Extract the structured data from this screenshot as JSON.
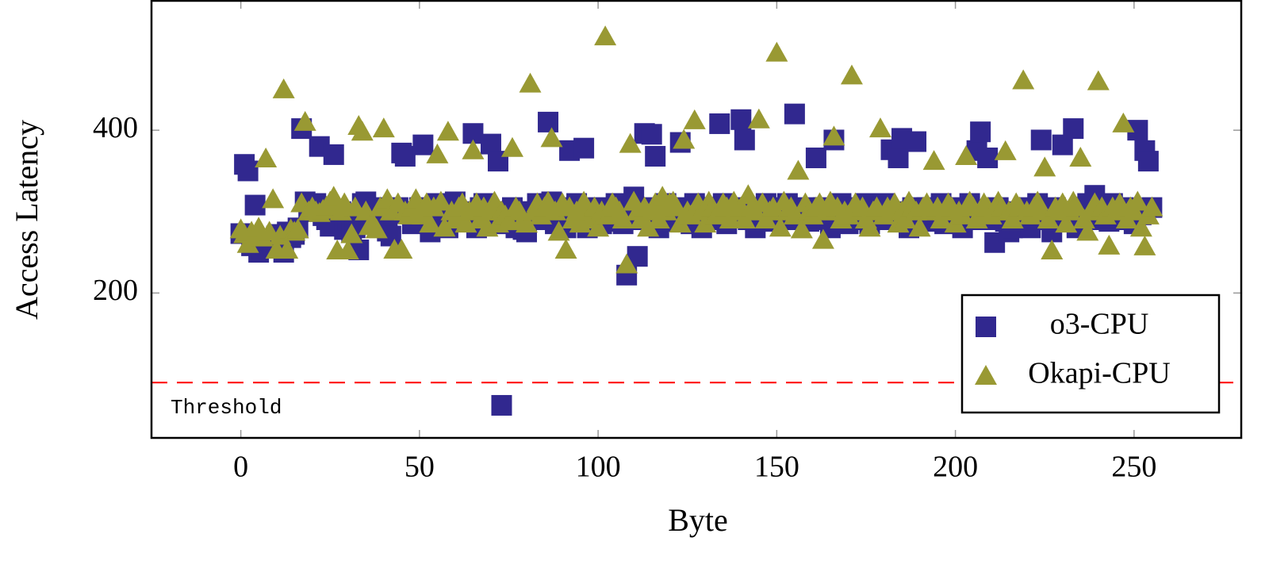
{
  "chart_data": {
    "type": "scatter",
    "x_label": "Byte",
    "y_label": "Access Latency",
    "x": [
      0,
      1,
      2,
      3,
      4,
      5,
      6,
      7,
      8,
      9,
      10,
      11,
      12,
      13,
      14,
      15,
      16,
      17,
      18,
      19,
      20,
      21,
      22,
      23,
      24,
      25,
      26,
      27,
      28,
      29,
      30,
      31,
      32,
      33,
      34,
      35,
      36,
      37,
      38,
      39,
      40,
      41,
      42,
      43,
      44,
      45,
      46,
      47,
      48,
      49,
      50,
      51,
      52,
      53,
      54,
      55,
      56,
      57,
      58,
      59,
      60,
      61,
      62,
      63,
      64,
      65,
      66,
      67,
      68,
      69,
      70,
      71,
      72,
      73,
      74,
      75,
      76,
      77,
      78,
      79,
      80,
      81,
      82,
      83,
      84,
      85,
      86,
      87,
      88,
      89,
      90,
      91,
      92,
      93,
      94,
      95,
      96,
      97,
      98,
      99,
      100,
      101,
      102,
      103,
      104,
      105,
      106,
      107,
      108,
      109,
      110,
      111,
      112,
      113,
      114,
      115,
      116,
      117,
      118,
      119,
      120,
      121,
      122,
      123,
      124,
      125,
      126,
      127,
      128,
      129,
      130,
      131,
      132,
      133,
      134,
      135,
      136,
      137,
      138,
      139,
      140,
      141,
      142,
      143,
      144,
      145,
      146,
      147,
      148,
      149,
      150,
      151,
      152,
      153,
      154,
      155,
      156,
      157,
      158,
      159,
      160,
      161,
      162,
      163,
      164,
      165,
      166,
      167,
      168,
      169,
      170,
      171,
      172,
      173,
      174,
      175,
      176,
      177,
      178,
      179,
      180,
      181,
      182,
      183,
      184,
      185,
      186,
      187,
      188,
      189,
      190,
      191,
      192,
      193,
      194,
      195,
      196,
      197,
      198,
      199,
      200,
      201,
      202,
      203,
      204,
      205,
      206,
      207,
      208,
      209,
      210,
      211,
      212,
      213,
      214,
      215,
      216,
      217,
      218,
      219,
      220,
      221,
      222,
      223,
      224,
      225,
      226,
      227,
      228,
      229,
      230,
      231,
      232,
      233,
      234,
      235,
      236,
      237,
      238,
      239,
      240,
      241,
      242,
      243,
      244,
      245,
      246,
      247,
      248,
      249,
      250,
      251,
      252,
      253,
      254,
      255
    ],
    "series": [
      {
        "name": "o3-CPU",
        "color": "#31288f",
        "marker": "square",
        "values": [
          273,
          358,
          350,
          258,
          308,
          250,
          255,
          260,
          265,
          258,
          270,
          272,
          250,
          275,
          268,
          272,
          280,
          402,
          312,
          305,
          300,
          310,
          380,
          295,
          290,
          282,
          370,
          285,
          300,
          278,
          290,
          275,
          280,
          253,
          310,
          312,
          300,
          292,
          305,
          288,
          285,
          276,
          270,
          298,
          305,
          372,
          368,
          300,
          285,
          290,
          305,
          382,
          295,
          275,
          300,
          310,
          296,
          288,
          280,
          305,
          312,
          300,
          290,
          296,
          298,
          396,
          280,
          305,
          310,
          290,
          383,
          300,
          362,
          62,
          285,
          290,
          305,
          280,
          300,
          278,
          275,
          300,
          295,
          310,
          290,
          305,
          410,
          312,
          285,
          300,
          298,
          280,
          375,
          305,
          310,
          290,
          378,
          280,
          300,
          292,
          305,
          285,
          300,
          296,
          288,
          310,
          300,
          285,
          222,
          300,
          318,
          245,
          290,
          396,
          305,
          395,
          368,
          280,
          300,
          310,
          292,
          288,
          305,
          385,
          290,
          300,
          285,
          310,
          296,
          280,
          305,
          298,
          300,
          290,
          408,
          310,
          285,
          300,
          296,
          305,
          413,
          388,
          290,
          300,
          280,
          305,
          295,
          310,
          288,
          300,
          296,
          290,
          305,
          310,
          298,
          420,
          290,
          300,
          305,
          288,
          300,
          366,
          295,
          305,
          290,
          280,
          388,
          300,
          310,
          296,
          285,
          305,
          300,
          290,
          298,
          310,
          285,
          300,
          295,
          305,
          310,
          290,
          376,
          300,
          366,
          390,
          296,
          280,
          305,
          386,
          300,
          290,
          305,
          288,
          300,
          296,
          310,
          285,
          300,
          290,
          305,
          296,
          280,
          300,
          310,
          290,
          375,
          398,
          300,
          366,
          290,
          262,
          305,
          296,
          288,
          275,
          280,
          300,
          285,
          290,
          305,
          280,
          296,
          310,
          388,
          300,
          290,
          275,
          305,
          296,
          382,
          300,
          288,
          402,
          280,
          305,
          296,
          310,
          290,
          320,
          300,
          296,
          305,
          288,
          310,
          300,
          295,
          305,
          290,
          300,
          285,
          400,
          296,
          375,
          362,
          305
        ]
      },
      {
        "name": "Okapi-CPU",
        "color": "#999933",
        "marker": "triangle",
        "values": [
          278,
          272,
          260,
          275,
          270,
          280,
          268,
          365,
          275,
          315,
          253,
          270,
          450,
          253,
          278,
          275,
          278,
          310,
          410,
          300,
          305,
          300,
          298,
          302,
          306,
          312,
          318,
          252,
          300,
          310,
          252,
          272,
          305,
          405,
          398,
          300,
          282,
          285,
          278,
          305,
          402,
          315,
          300,
          253,
          310,
          253,
          300,
          295,
          305,
          315,
          300,
          295,
          310,
          285,
          305,
          370,
          312,
          280,
          398,
          300,
          290,
          305,
          310,
          285,
          300,
          375,
          310,
          290,
          305,
          280,
          300,
          312,
          285,
          300,
          295,
          288,
          378,
          305,
          300,
          290,
          285,
          457,
          300,
          310,
          295,
          305,
          312,
          390,
          300,
          275,
          310,
          253,
          305,
          290,
          300,
          285,
          312,
          300,
          290,
          305,
          280,
          300,
          515,
          295,
          310,
          305,
          300,
          290,
          235,
          383,
          312,
          300,
          290,
          305,
          280,
          300,
          310,
          290,
          318,
          300,
          310,
          312,
          305,
          285,
          388,
          300,
          295,
          412,
          310,
          300,
          285,
          312,
          305,
          295,
          300,
          310,
          305,
          290,
          312,
          300,
          305,
          290,
          320,
          305,
          300,
          413,
          310,
          290,
          300,
          305,
          495,
          280,
          312,
          300,
          305,
          295,
          350,
          278,
          310,
          300,
          295,
          305,
          310,
          265,
          300,
          312,
          392,
          305,
          290,
          300,
          295,
          467,
          310,
          300,
          305,
          290,
          280,
          300,
          305,
          402,
          295,
          305,
          300,
          310,
          285,
          300,
          290,
          312,
          305,
          300,
          280,
          305,
          310,
          300,
          362,
          305,
          290,
          300,
          310,
          305,
          285,
          300,
          295,
          368,
          312,
          305,
          290,
          300,
          310,
          305,
          295,
          300,
          312,
          305,
          374,
          300,
          290,
          310,
          305,
          461,
          300,
          295,
          305,
          312,
          300,
          354,
          290,
          252,
          305,
          300,
          310,
          285,
          300,
          312,
          305,
          366,
          290,
          275,
          300,
          310,
          460,
          305,
          295,
          258,
          305,
          300,
          310,
          408,
          290,
          305,
          300,
          312,
          280,
          257,
          295,
          305
        ]
      }
    ],
    "threshold": {
      "value": 90,
      "label": "Threshold",
      "color": "#ff0000"
    },
    "xlim": [
      -25,
      280
    ],
    "xticks": [
      0,
      50,
      100,
      150,
      200,
      250
    ],
    "ylim": [
      22,
      559
    ],
    "yticks": [
      200,
      400
    ],
    "legend": "south east"
  }
}
